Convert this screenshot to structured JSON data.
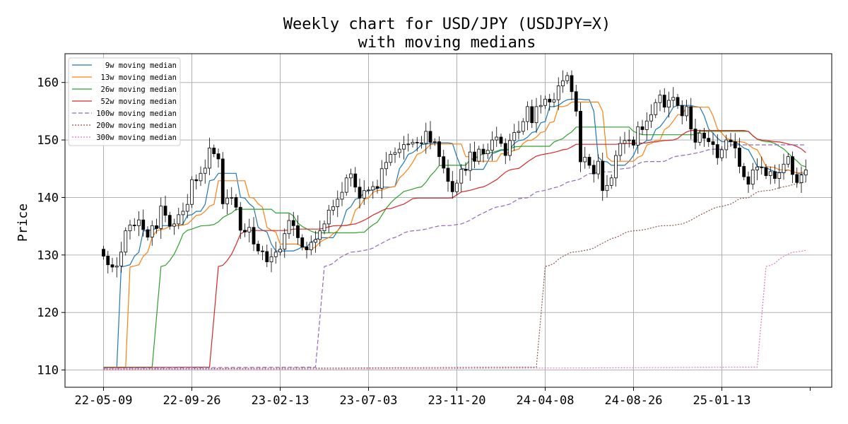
{
  "chart_data": {
    "type": "candlestick",
    "title": "Weekly chart for USD/JPY (USDJPY=X)",
    "subtitle": "with moving medians",
    "ylabel": "Price",
    "ylim": [
      107,
      165
    ],
    "yticks": [
      110,
      120,
      130,
      140,
      150,
      160
    ],
    "xtick_labels": [
      "22-05-09",
      "22-09-26",
      "23-02-13",
      "23-07-03",
      "23-11-20",
      "24-04-08",
      "24-08-26",
      "25-01-13"
    ],
    "grid": true,
    "legend_position": "top-left",
    "start_week": "22-05-09",
    "num_weeks": 160,
    "close": [
      129.8,
      128.3,
      127.9,
      128.1,
      130.5,
      134.2,
      135.2,
      135.1,
      136.1,
      134.4,
      133.1,
      135.1,
      134.6,
      138.5,
      136.9,
      135.0,
      135.4,
      137.0,
      137.6,
      138.8,
      143.1,
      142.9,
      144.2,
      145.1,
      148.6,
      147.6,
      146.7,
      138.9,
      139.9,
      140.0,
      138.3,
      134.3,
      134.0,
      134.8,
      131.9,
      130.7,
      130.6,
      128.8,
      129.7,
      130.5,
      131.0,
      133.7,
      136.0,
      135.1,
      133.0,
      131.4,
      130.9,
      132.2,
      132.7,
      134.2,
      135.4,
      137.8,
      138.4,
      139.7,
      140.9,
      143.4,
      144.1,
      141.8,
      139.9,
      141.2,
      141.3,
      141.9,
      141.6,
      145.0,
      146.1,
      147.5,
      147.8,
      148.4,
      149.2,
      149.3,
      149.6,
      149.5,
      149.4,
      151.5,
      149.6,
      149.7,
      147.1,
      145.1,
      142.8,
      141.0,
      142.5,
      144.9,
      144.7,
      147.9,
      146.3,
      148.4,
      147.6,
      148.2,
      150.0,
      150.5,
      149.4,
      147.3,
      149.9,
      151.3,
      151.5,
      153.2,
      155.8,
      153.0,
      155.8,
      156.0,
      157.1,
      156.6,
      157.0,
      159.4,
      160.3,
      161.2,
      158.4,
      155.0,
      146.2,
      147.0,
      145.6,
      144.1,
      146.3,
      141.2,
      142.1,
      143.4,
      147.3,
      149.4,
      149.9,
      150.0,
      149.1,
      152.3,
      151.8,
      153.3,
      154.4,
      156.5,
      157.8,
      155.7,
      156.9,
      157.4,
      156.0,
      154.2,
      155.8,
      151.9,
      149.6,
      151.2,
      150.3,
      149.7,
      149.2,
      146.9,
      148.3,
      150.0,
      149.7,
      148.6,
      145.4,
      143.6,
      142.3,
      144.8,
      145.3,
      145.2,
      143.8,
      144.5,
      143.3,
      144.3,
      145.8,
      147.1,
      144.0,
      142.6,
      143.9,
      144.8
    ],
    "series": [
      {
        "name": "9w moving median",
        "color": "#1f77b4",
        "style": "solid"
      },
      {
        "name": "13w moving median",
        "color": "#ff7f0e",
        "style": "solid"
      },
      {
        "name": "26w moving median",
        "color": "#2ca02c",
        "style": "solid"
      },
      {
        "name": "52w moving median",
        "color": "#d62728",
        "style": "solid"
      },
      {
        "name": "100w moving median",
        "color": "#9467bd",
        "style": "dashed"
      },
      {
        "name": "200w moving median",
        "color": "#8c564b",
        "style": "dotted"
      },
      {
        "name": "300w moving median",
        "color": "#e377c2",
        "style": "dotted"
      }
    ]
  }
}
